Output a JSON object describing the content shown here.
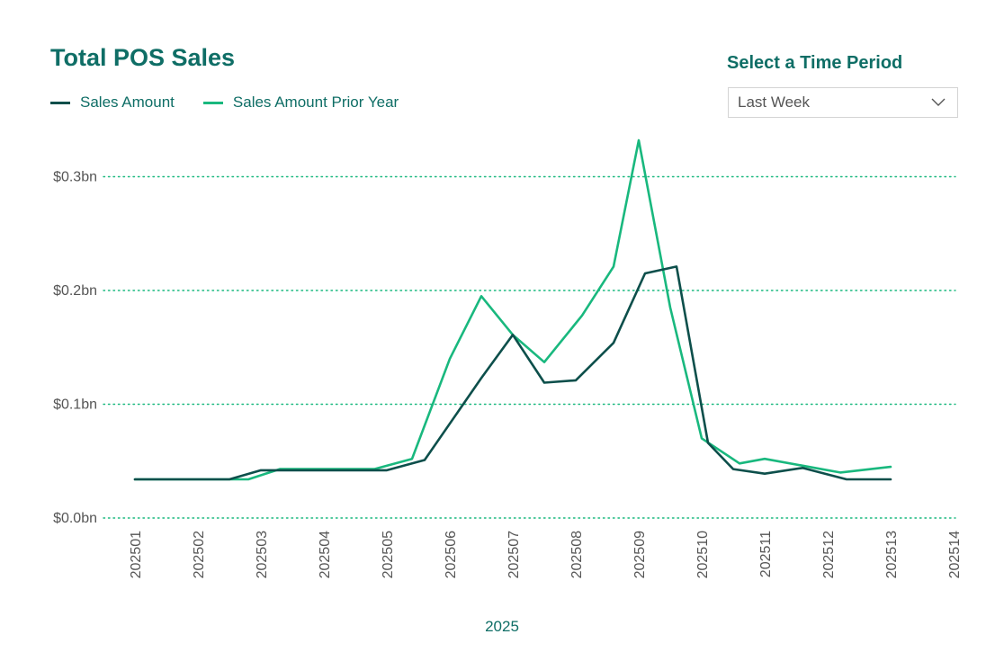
{
  "header": {
    "title": "Total POS Sales"
  },
  "period_selector": {
    "title": "Select a Time Period",
    "selected": "Last Week",
    "icon": "chevron-down-icon"
  },
  "colors": {
    "sales": "#0d4f4b",
    "prior": "#19b87e",
    "accent": "#0f6e66",
    "grid": "#19b87e"
  },
  "chart_data": {
    "type": "line",
    "xlabel": "2025",
    "ylabel": "",
    "categories": [
      "202501",
      "202502",
      "202503",
      "202504",
      "202505",
      "202506",
      "202507",
      "202508",
      "202509",
      "202510",
      "202511",
      "202512",
      "202513",
      "202514"
    ],
    "yticks": [
      {
        "value": 0.0,
        "label": "$0.0bn"
      },
      {
        "value": 0.1,
        "label": "$0.1bn"
      },
      {
        "value": 0.2,
        "label": "$0.2bn"
      },
      {
        "value": 0.3,
        "label": "$0.3bn"
      }
    ],
    "ylim": [
      0,
      0.35
    ],
    "grid": true,
    "legend_position": "top-left",
    "series": [
      {
        "name": "Sales Amount",
        "points": [
          [
            0.0,
            0.034
          ],
          [
            1.5,
            0.034
          ],
          [
            2.0,
            0.042
          ],
          [
            4.0,
            0.042
          ],
          [
            4.6,
            0.051
          ],
          [
            5.5,
            0.123
          ],
          [
            6.0,
            0.161
          ],
          [
            6.5,
            0.119
          ],
          [
            7.0,
            0.121
          ],
          [
            7.6,
            0.154
          ],
          [
            8.1,
            0.215
          ],
          [
            8.6,
            0.221
          ],
          [
            9.1,
            0.066
          ],
          [
            9.5,
            0.043
          ],
          [
            10.0,
            0.039
          ],
          [
            10.6,
            0.044
          ],
          [
            11.3,
            0.034
          ],
          [
            12.0,
            0.034
          ]
        ]
      },
      {
        "name": "Sales Amount Prior Year",
        "points": [
          [
            0.0,
            0.034
          ],
          [
            1.8,
            0.034
          ],
          [
            2.3,
            0.043
          ],
          [
            3.8,
            0.043
          ],
          [
            4.4,
            0.052
          ],
          [
            5.0,
            0.14
          ],
          [
            5.5,
            0.195
          ],
          [
            6.0,
            0.161
          ],
          [
            6.5,
            0.137
          ],
          [
            7.1,
            0.178
          ],
          [
            7.6,
            0.221
          ],
          [
            8.0,
            0.332
          ],
          [
            8.5,
            0.185
          ],
          [
            9.0,
            0.07
          ],
          [
            9.6,
            0.048
          ],
          [
            10.0,
            0.052
          ],
          [
            11.2,
            0.04
          ],
          [
            12.0,
            0.045
          ]
        ]
      }
    ]
  }
}
